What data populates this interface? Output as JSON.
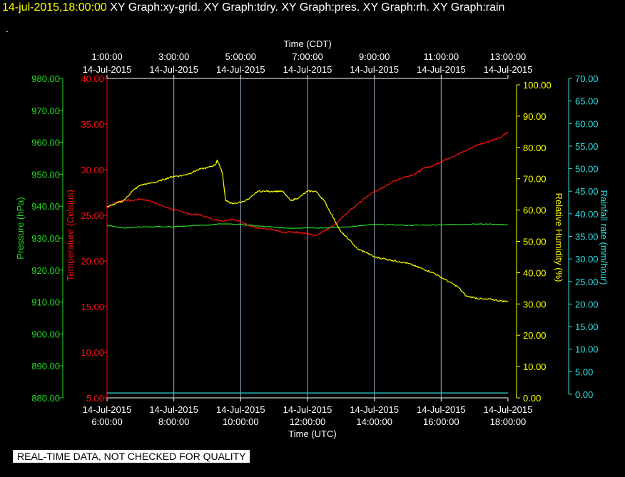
{
  "header": {
    "datetime": "14-jul-2015,18:00:00",
    "graphs": [
      "XY Graph:xy-grid.",
      "XY Graph:tdry.",
      "XY Graph:pres.",
      "XY Graph:rh.",
      "XY Graph:rain"
    ],
    "dot": "."
  },
  "disclaimer": "REAL-TIME DATA, NOT CHECKED FOR QUALITY",
  "colors": {
    "background": "#000000",
    "grid": "#9ab0c8",
    "axis_white": "#ffffff",
    "temperature": "#ff1010",
    "pressure": "#22dd22",
    "humidity": "#ffff00",
    "rain": "#33dddd",
    "header_date": "#ffff00"
  },
  "chart_data": {
    "type": "line",
    "top_axis": {
      "label": "Time (CDT)",
      "ticks": [
        {
          "time": "1:00:00",
          "date": "14-Jul-2015"
        },
        {
          "time": "3:00:00",
          "date": "14-Jul-2015"
        },
        {
          "time": "5:00:00",
          "date": "14-Jul-2015"
        },
        {
          "time": "7:00:00",
          "date": "14-Jul-2015"
        },
        {
          "time": "9:00:00",
          "date": "14-Jul-2015"
        },
        {
          "time": "11:00:00",
          "date": "14-Jul-2015"
        },
        {
          "time": "13:00:00",
          "date": "14-Jul-2015"
        }
      ]
    },
    "bottom_axis": {
      "label": "Time (UTC)",
      "ticks": [
        {
          "date": "14-Jul-2015",
          "time": "6:00:00"
        },
        {
          "date": "14-Jul-2015",
          "time": "8:00:00"
        },
        {
          "date": "14-Jul-2015",
          "time": "10:00:00"
        },
        {
          "date": "14-Jul-2015",
          "time": "12:00:00"
        },
        {
          "date": "14-Jul-2015",
          "time": "14:00:00"
        },
        {
          "date": "14-Jul-2015",
          "time": "16:00:00"
        },
        {
          "date": "14-Jul-2015",
          "time": "18:00:00"
        }
      ]
    },
    "x_range_utc_hours": [
      6,
      18
    ],
    "grid": true,
    "axes": {
      "pressure": {
        "label": "Pressure (hPa)",
        "range": [
          880,
          980
        ],
        "ticks": [
          "880.00",
          "890.00",
          "900.00",
          "910.00",
          "920.00",
          "930.00",
          "940.00",
          "950.00",
          "960.00",
          "970.00",
          "980.00"
        ]
      },
      "temperature": {
        "label": "Temperature (Celsius)",
        "range": [
          5,
          40
        ],
        "ticks": [
          "5.00",
          "10.00",
          "15.00",
          "20.00",
          "25.00",
          "30.00",
          "35.00",
          "40.00"
        ]
      },
      "humidity": {
        "label": "Relative Humidity (%)",
        "range": [
          0,
          102
        ],
        "ticks": [
          "0.00",
          "10.00",
          "20.00",
          "30.00",
          "40.00",
          "50.00",
          "60.00",
          "70.00",
          "80.00",
          "90.00",
          "100.00"
        ]
      },
      "rain": {
        "label": "Rainfall rate (mm/hour)",
        "range": [
          0,
          70
        ],
        "ticks": [
          "0.00",
          "5.00",
          "10.00",
          "15.00",
          "20.00",
          "25.00",
          "30.00",
          "35.00",
          "40.00",
          "45.00",
          "50.00",
          "55.00",
          "60.00",
          "65.00",
          "70.00"
        ]
      }
    },
    "series": [
      {
        "name": "tdry",
        "axis": "temperature",
        "x": [
          6.0,
          6.25,
          6.5,
          6.75,
          7.0,
          7.25,
          7.5,
          7.75,
          8.0,
          8.25,
          8.5,
          8.75,
          9.0,
          9.25,
          9.5,
          9.75,
          10.0,
          10.25,
          10.5,
          10.75,
          11.0,
          11.25,
          11.5,
          11.75,
          12.0,
          12.25,
          12.5,
          12.75,
          13.0,
          13.25,
          13.5,
          13.75,
          14.0,
          14.25,
          14.5,
          14.75,
          15.0,
          15.25,
          15.5,
          15.75,
          16.0,
          16.25,
          16.5,
          16.75,
          17.0,
          17.25,
          17.5,
          17.75,
          18.0
        ],
        "y": [
          25.8,
          26.4,
          26.7,
          26.6,
          26.8,
          26.6,
          26.3,
          25.9,
          25.6,
          25.4,
          25.1,
          25.1,
          24.8,
          24.5,
          24.4,
          24.6,
          24.3,
          23.9,
          23.6,
          23.5,
          23.4,
          23.1,
          23.2,
          23.1,
          23.0,
          22.8,
          23.3,
          23.8,
          24.6,
          25.5,
          26.2,
          27.0,
          27.6,
          28.0,
          28.6,
          29.0,
          29.3,
          29.6,
          30.2,
          30.4,
          30.9,
          31.3,
          31.7,
          32.1,
          32.6,
          32.9,
          33.2,
          33.5,
          34.1
        ]
      },
      {
        "name": "pres",
        "axis": "pressure",
        "x": [
          6.0,
          6.5,
          7.0,
          7.5,
          8.0,
          8.5,
          9.0,
          9.5,
          10.0,
          10.5,
          11.0,
          11.5,
          12.0,
          12.5,
          13.0,
          13.5,
          14.0,
          14.5,
          15.0,
          15.5,
          16.0,
          16.5,
          17.0,
          17.5,
          18.0
        ],
        "y": [
          934.0,
          933.2,
          933.5,
          933.6,
          933.6,
          933.9,
          934.1,
          934.5,
          934.3,
          933.8,
          933.4,
          933.1,
          933.3,
          933.2,
          933.4,
          933.8,
          934.3,
          934.2,
          934.0,
          934.1,
          934.2,
          934.3,
          934.4,
          934.4,
          934.2
        ]
      },
      {
        "name": "rh",
        "axis": "humidity",
        "x": [
          6.0,
          6.25,
          6.5,
          6.75,
          7.0,
          7.25,
          7.5,
          7.75,
          8.0,
          8.25,
          8.5,
          8.75,
          9.0,
          9.25,
          9.3,
          9.45,
          9.55,
          9.75,
          10.0,
          10.25,
          10.5,
          10.75,
          11.0,
          11.25,
          11.5,
          11.75,
          12.0,
          12.25,
          12.5,
          12.75,
          13.0,
          13.25,
          13.5,
          13.75,
          14.0,
          14.25,
          14.5,
          14.75,
          15.0,
          15.25,
          15.5,
          15.75,
          16.0,
          16.25,
          16.5,
          16.75,
          17.0,
          17.25,
          17.5,
          17.75,
          18.0
        ],
        "y": [
          61,
          62,
          63,
          66,
          68,
          68.5,
          69,
          70,
          70.8,
          71,
          71.8,
          73,
          73.5,
          74.5,
          76,
          72,
          63,
          62,
          62.5,
          63.5,
          66,
          66,
          66,
          66,
          63,
          64,
          66,
          66,
          63,
          58,
          53,
          50.5,
          47.5,
          46.5,
          45,
          44.5,
          44,
          43.5,
          43,
          42,
          41,
          40,
          38.5,
          37,
          35.5,
          32.5,
          32,
          31.5,
          31.5,
          31,
          30.8
        ]
      },
      {
        "name": "rain",
        "axis": "rain",
        "x": [
          6.0,
          18.0
        ],
        "y": [
          0.3,
          0.3
        ]
      }
    ]
  }
}
